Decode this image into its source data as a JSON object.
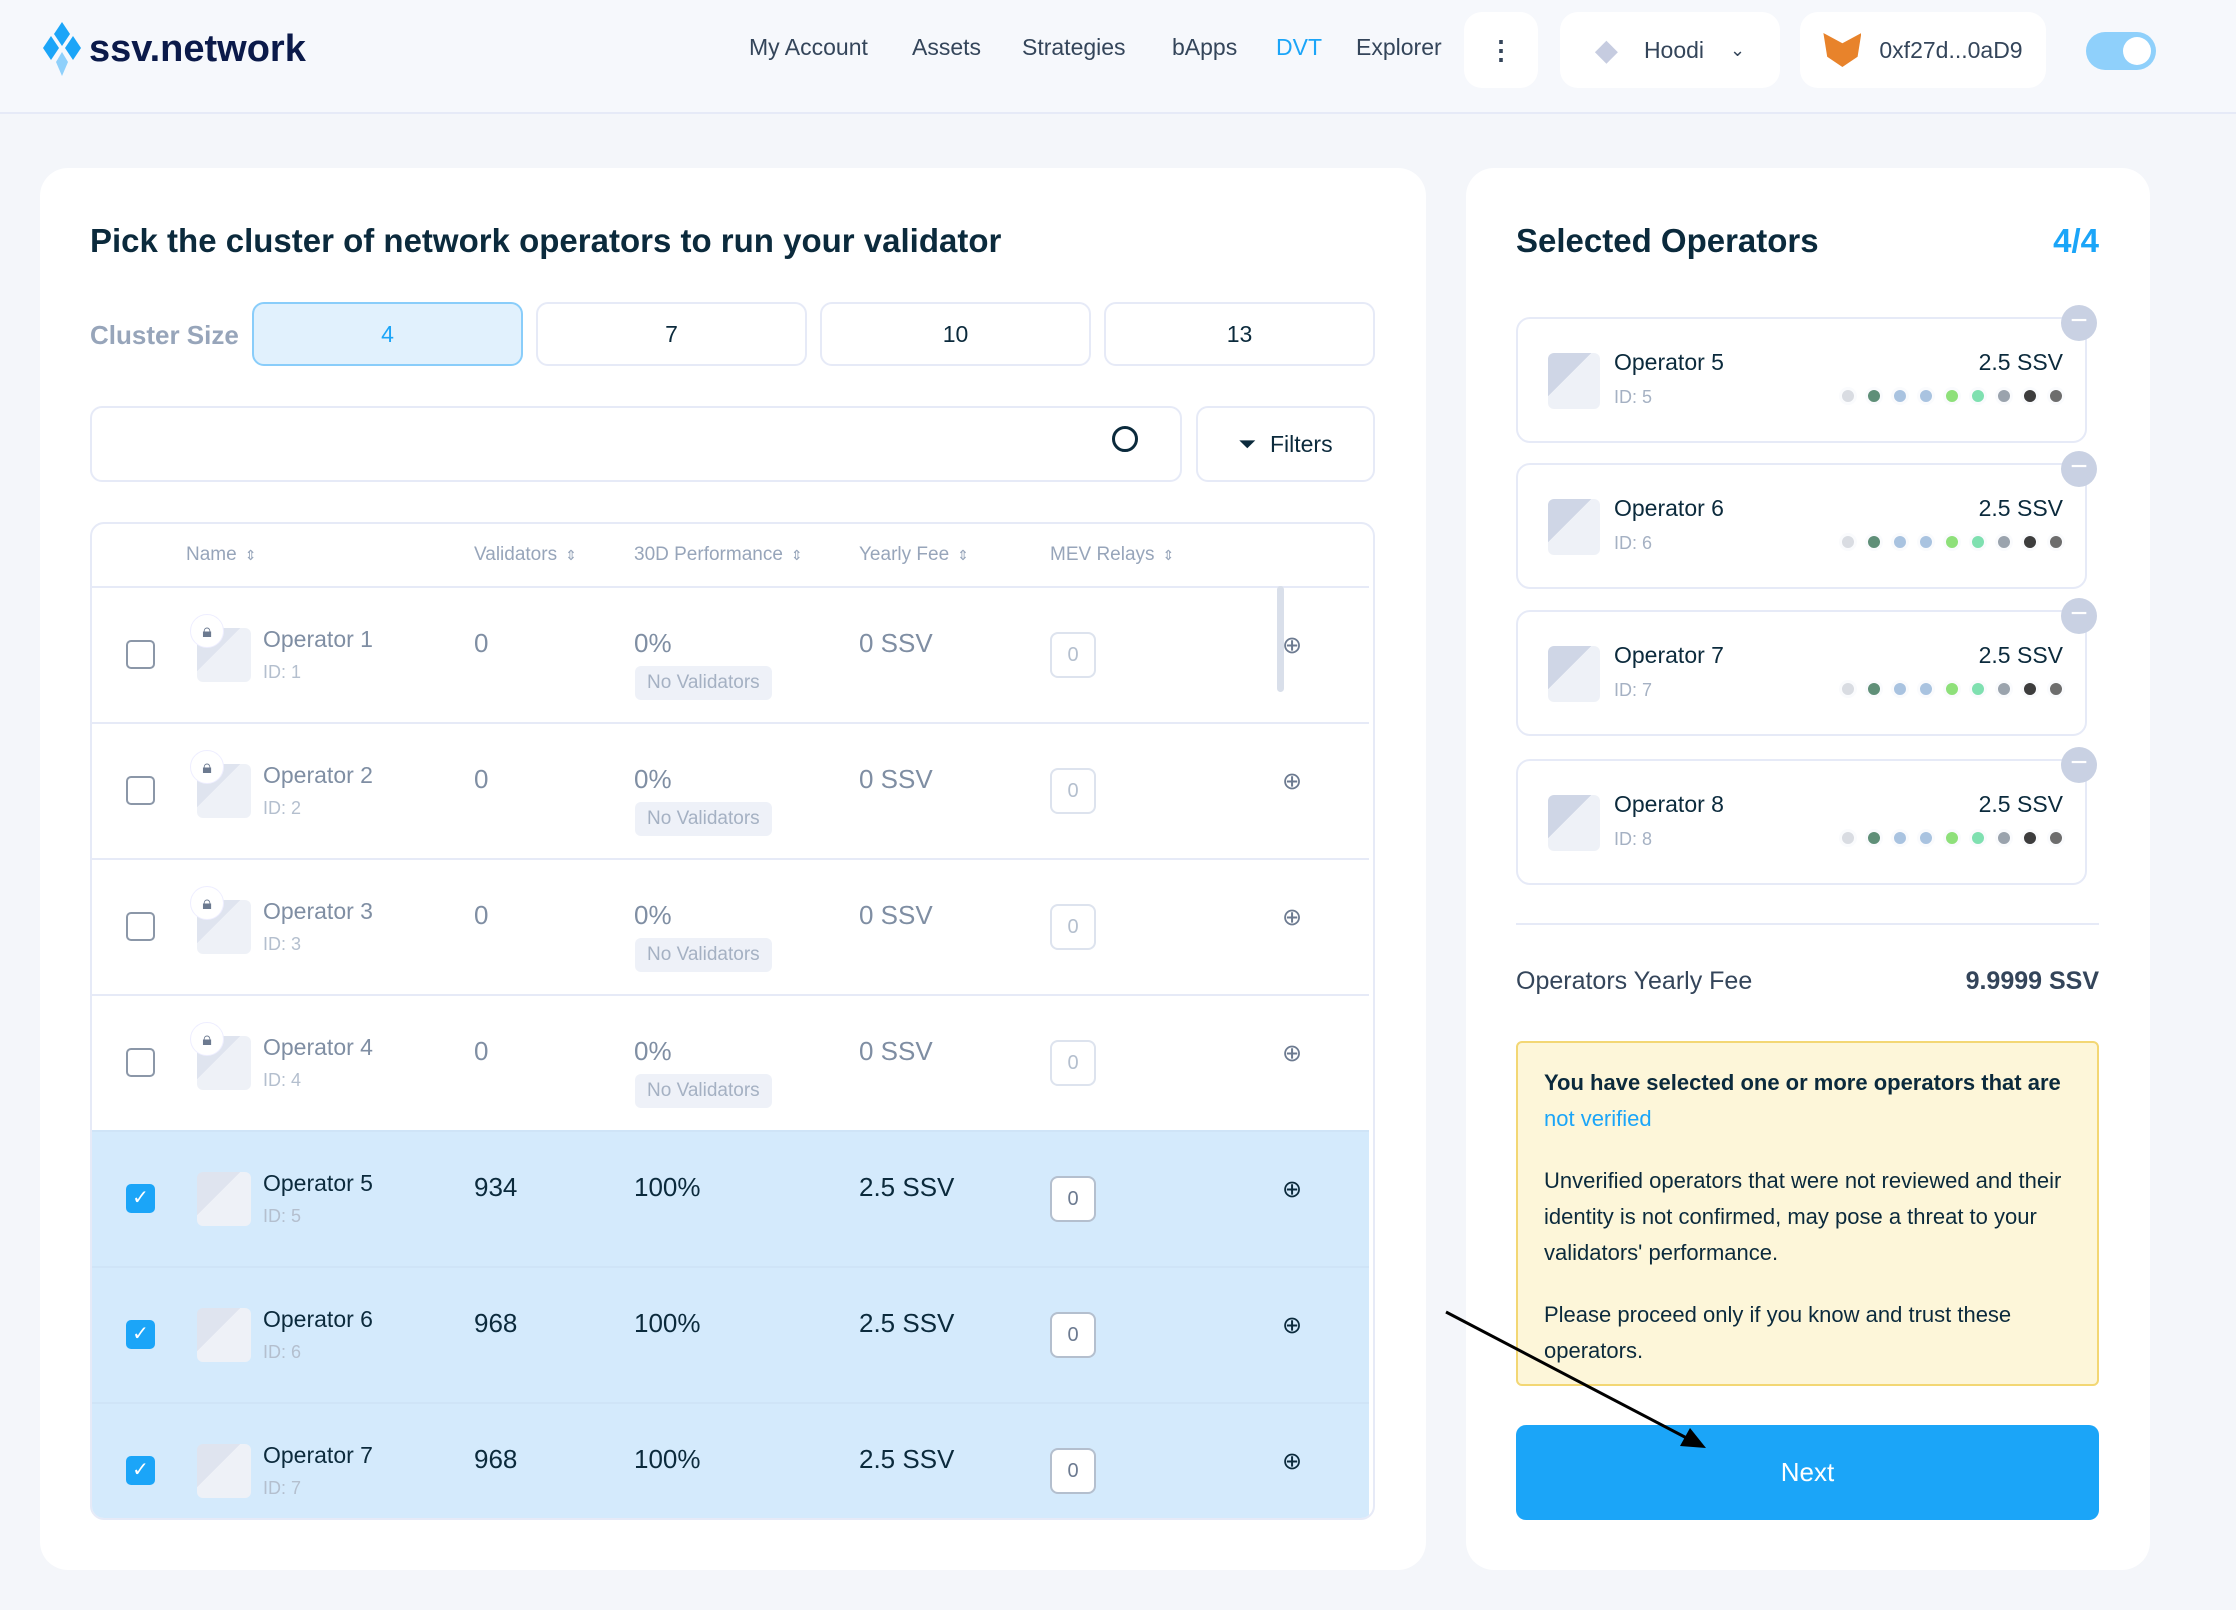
{
  "header": {
    "logo": "ssv.network",
    "nav": [
      "My Account",
      "Assets",
      "Strategies",
      "bApps",
      "DVT",
      "Explorer"
    ],
    "active_nav": "DVT",
    "network": "Hoodi",
    "wallet": "0xf27d...0aD9",
    "accent": "#1ba5f8"
  },
  "picker": {
    "title": "Pick the cluster of network operators to run your validator",
    "cluster_label": "Cluster Size",
    "cluster_sizes": [
      "4",
      "7",
      "10",
      "13"
    ],
    "selected_size": "4",
    "search": {
      "value": "",
      "placeholder": ""
    },
    "filters_label": "Filters",
    "columns": [
      "Name",
      "Validators",
      "30D Performance",
      "Yearly Fee",
      "MEV Relays"
    ],
    "rows": [
      {
        "name": "Operator 1",
        "id": "ID: 1",
        "validators": "0",
        "performance": "0%",
        "badge": "No Validators",
        "fee": "0 SSV",
        "mev": "0",
        "selected": false,
        "locked": true
      },
      {
        "name": "Operator 2",
        "id": "ID: 2",
        "validators": "0",
        "performance": "0%",
        "badge": "No Validators",
        "fee": "0 SSV",
        "mev": "0",
        "selected": false,
        "locked": true
      },
      {
        "name": "Operator 3",
        "id": "ID: 3",
        "validators": "0",
        "performance": "0%",
        "badge": "No Validators",
        "fee": "0 SSV",
        "mev": "0",
        "selected": false,
        "locked": true
      },
      {
        "name": "Operator 4",
        "id": "ID: 4",
        "validators": "0",
        "performance": "0%",
        "badge": "No Validators",
        "fee": "0 SSV",
        "mev": "0",
        "selected": false,
        "locked": true
      },
      {
        "name": "Operator 5",
        "id": "ID: 5",
        "validators": "934",
        "performance": "100%",
        "badge": "",
        "fee": "2.5 SSV",
        "mev": "0",
        "selected": true,
        "locked": false
      },
      {
        "name": "Operator 6",
        "id": "ID: 6",
        "validators": "968",
        "performance": "100%",
        "badge": "",
        "fee": "2.5 SSV",
        "mev": "0",
        "selected": true,
        "locked": false
      },
      {
        "name": "Operator 7",
        "id": "ID: 7",
        "validators": "968",
        "performance": "100%",
        "badge": "",
        "fee": "2.5 SSV",
        "mev": "0",
        "selected": true,
        "locked": false
      }
    ]
  },
  "selected": {
    "title": "Selected Operators",
    "count": "4/4",
    "operators": [
      {
        "name": "Operator 5",
        "id": "ID: 5",
        "fee": "2.5 SSV"
      },
      {
        "name": "Operator 6",
        "id": "ID: 6",
        "fee": "2.5 SSV"
      },
      {
        "name": "Operator 7",
        "id": "ID: 7",
        "fee": "2.5 SSV"
      },
      {
        "name": "Operator 8",
        "id": "ID: 8",
        "fee": "2.5 SSV"
      }
    ],
    "relay_colors": [
      "#d9dce2",
      "#5f8f78",
      "#a9c3e0",
      "#a9c3e0",
      "#8ee07a",
      "#7fe0b0",
      "#9aa3ad",
      "#3d3d3d",
      "#6d6d6d"
    ],
    "fee_label": "Operators Yearly Fee",
    "fee_total": "9.9999 SSV",
    "warning": {
      "line1": "You have selected one or more operators that are",
      "link": "not verified",
      "p2": "Unverified operators that were not reviewed and their identity is not confirmed, may pose a threat to your validators' performance.",
      "p3": "Please proceed only if you know and trust these operators."
    },
    "next_label": "Next"
  }
}
